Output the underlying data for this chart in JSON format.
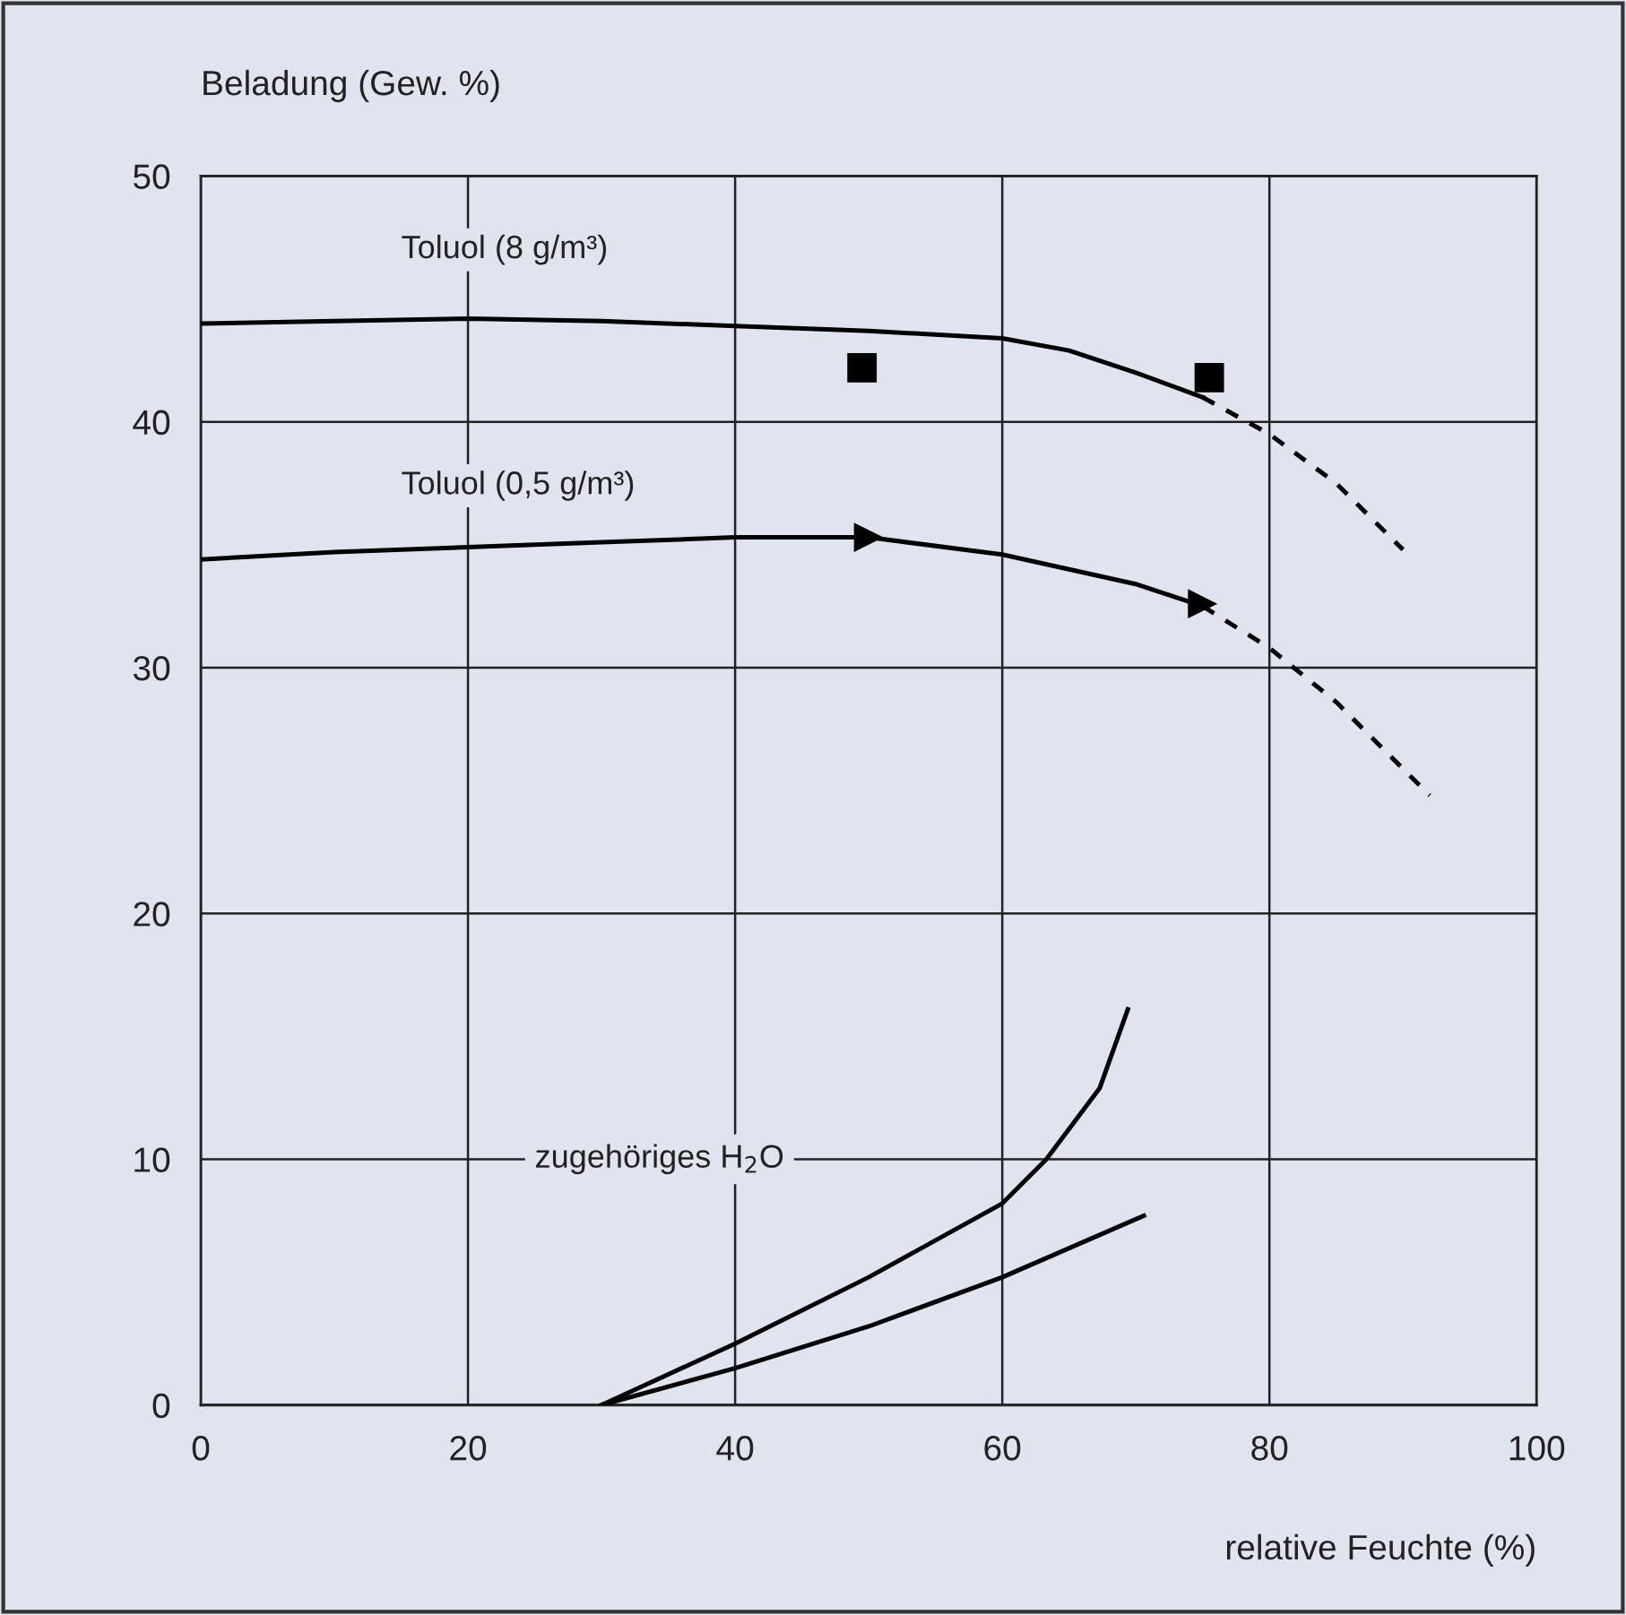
{
  "chart_data": {
    "type": "line",
    "ylabel": "Beladung (Gew. %)",
    "xlabel": "relative Feuchte (%)",
    "xlim": [
      0,
      100
    ],
    "ylim": [
      0,
      50
    ],
    "xticks": [
      0,
      20,
      40,
      60,
      80,
      100
    ],
    "yticks": [
      0,
      10,
      20,
      30,
      40,
      50
    ],
    "grid": true,
    "legend": false,
    "annotations": [
      "zugehöriges H$_{2}$O"
    ],
    "series": [
      {
        "name": "Toluol (8 g/m³)",
        "color": "#000000",
        "line_style": "solid",
        "x": [
          0,
          10,
          20,
          30,
          40,
          50,
          60,
          65,
          70,
          75
        ],
        "values": [
          44.0,
          44.1,
          44.2,
          44.1,
          43.9,
          43.7,
          43.4,
          42.9,
          42.0,
          41.0
        ]
      },
      {
        "color": "#000000",
        "line_style": "dashed",
        "x": [
          75,
          80,
          85,
          90
        ],
        "values": [
          41.0,
          39.5,
          37.5,
          34.8
        ]
      },
      {
        "name": "Toluol (0,5 g/m³)",
        "color": "#000000",
        "line_style": "solid",
        "x": [
          0,
          10,
          20,
          30,
          40,
          50,
          60,
          70,
          75
        ],
        "values": [
          34.4,
          34.7,
          34.9,
          35.1,
          35.3,
          35.3,
          34.6,
          33.4,
          32.5
        ]
      },
      {
        "color": "#000000",
        "line_style": "dashed",
        "x": [
          75,
          80,
          85,
          92
        ],
        "values": [
          32.5,
          30.8,
          28.6,
          24.8
        ]
      },
      {
        "type": "scatter",
        "color": "#000000",
        "marker": "square",
        "x": [
          49.5,
          75.5
        ],
        "values": [
          42.2,
          41.8
        ]
      },
      {
        "type": "scatter",
        "color": "#000000",
        "marker": "triangle",
        "x": [
          50,
          75
        ],
        "values": [
          35.3,
          32.6
        ]
      },
      {
        "color": "#000000",
        "line_style": "solid",
        "x": [
          30,
          40,
          50,
          60,
          63.3,
          67.3,
          69.4
        ],
        "values": [
          0,
          2.5,
          5.2,
          8.2,
          10,
          12.9,
          16.1
        ]
      },
      {
        "color": "#000000",
        "line_style": "solid",
        "x": [
          30,
          40,
          50,
          60,
          70.6
        ],
        "values": [
          0,
          1.5,
          3.2,
          5.2,
          7.7
        ]
      }
    ]
  }
}
